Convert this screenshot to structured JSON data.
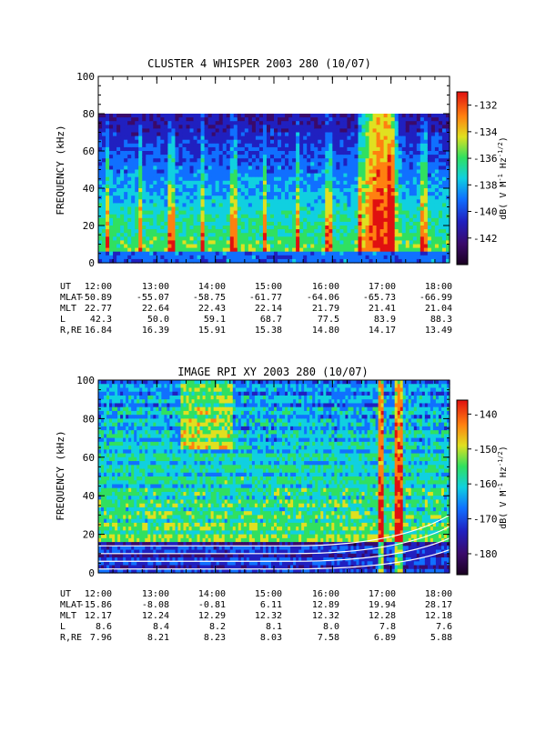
{
  "chart_data": [
    {
      "type": "heatmap",
      "title": "CLUSTER 4 WHISPER 2003 280 (10/07)",
      "ylabel": "FREQUENCY (kHz)",
      "ylim": [
        0,
        100
      ],
      "yticks": [
        "0",
        "20",
        "40",
        "60",
        "80",
        "100"
      ],
      "ytick_values": [
        0,
        20,
        40,
        60,
        80,
        100
      ],
      "data_top_khz": 80,
      "xticks": [
        "12:00",
        "13:00",
        "14:00",
        "15:00",
        "16:00",
        "17:00",
        "18:00"
      ],
      "colorbar": {
        "label": "dB( V M",
        "label_sup1": "-1",
        "label_mid": " Hz",
        "label_sup2": "-1/2",
        "label_end": ")",
        "range": [
          -144,
          -131
        ],
        "ticks": [
          "-132",
          "-134",
          "-136",
          "-138",
          "-140",
          "-142"
        ],
        "tick_values": [
          -132,
          -134,
          -136,
          -138,
          -140,
          -142
        ]
      },
      "ephemeris": {
        "rows": [
          {
            "label": "UT",
            "values": [
              "12:00",
              "13:00",
              "14:00",
              "15:00",
              "16:00",
              "17:00",
              "18:00"
            ]
          },
          {
            "label": "MLAT",
            "values": [
              "-50.89",
              "-55.07",
              "-58.75",
              "-61.77",
              "-64.06",
              "-65.73",
              "-66.99"
            ]
          },
          {
            "label": "MLT",
            "values": [
              "22.77",
              "22.64",
              "22.43",
              "22.14",
              "21.79",
              "21.41",
              "21.04"
            ]
          },
          {
            "label": "L",
            "values": [
              "42.3",
              "50.0",
              "59.1",
              "68.7",
              "77.5",
              "83.9",
              "88.3"
            ]
          },
          {
            "label": "R,RE",
            "values": [
              "16.84",
              "16.39",
              "15.91",
              "15.38",
              "14.80",
              "14.17",
              "13.49"
            ]
          }
        ]
      }
    },
    {
      "type": "heatmap",
      "title": "IMAGE RPI XY 2003 280 (10/07)",
      "ylabel": "FREQUENCY (kHz)",
      "ylim": [
        0,
        100
      ],
      "yticks": [
        "0",
        "20",
        "40",
        "60",
        "80",
        "100"
      ],
      "ytick_values": [
        0,
        20,
        40,
        60,
        80,
        100
      ],
      "data_top_khz": 100,
      "xticks": [
        "12:00",
        "13:00",
        "14:00",
        "15:00",
        "16:00",
        "17:00",
        "18:00"
      ],
      "colorbar": {
        "label": "dB( V M",
        "label_sup1": "-1",
        "label_mid": " Hz",
        "label_sup2": "-1/2",
        "label_end": ")",
        "range": [
          -186,
          -136
        ],
        "ticks": [
          "-140",
          "-150",
          "-160",
          "-170",
          "-180"
        ],
        "tick_values": [
          -140,
          -150,
          -160,
          -170,
          -180
        ]
      },
      "ephemeris": {
        "rows": [
          {
            "label": "UT",
            "values": [
              "12:00",
              "13:00",
              "14:00",
              "15:00",
              "16:00",
              "17:00",
              "18:00"
            ]
          },
          {
            "label": "MLAT",
            "values": [
              "-15.86",
              "-8.08",
              "-0.81",
              "6.11",
              "12.89",
              "19.94",
              "28.17"
            ]
          },
          {
            "label": "MLT",
            "values": [
              "12.17",
              "12.24",
              "12.29",
              "12.32",
              "12.32",
              "12.28",
              "12.18"
            ]
          },
          {
            "label": "L",
            "values": [
              "8.6",
              "8.4",
              "8.2",
              "8.1",
              "8.0",
              "7.8",
              "7.6"
            ]
          },
          {
            "label": "R,RE",
            "values": [
              "7.96",
              "8.21",
              "8.23",
              "8.03",
              "7.58",
              "6.89",
              "5.88"
            ]
          }
        ]
      }
    }
  ]
}
